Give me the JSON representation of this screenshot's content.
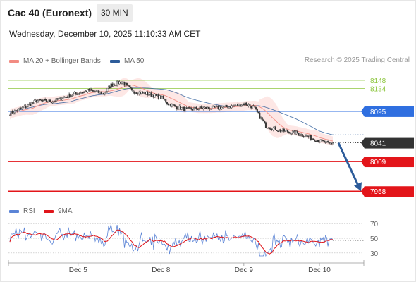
{
  "header": {
    "title": "Cac 40 (Euronext)",
    "timeframe": "30 MIN"
  },
  "datetime": "Wednesday, December 10, 2025 11:10:33 AM CET",
  "legend": {
    "ma20": {
      "label": "MA 20 + Bollinger Bands",
      "color": "#f28b82"
    },
    "ma50": {
      "label": "MA 50",
      "color": "#2d5c9a"
    }
  },
  "credit": "Research © 2025 Trading Central",
  "rsi_legend": {
    "rsi": {
      "label": "RSI",
      "color": "#5b84d6"
    },
    "ma9": {
      "label": "9MA",
      "color": "#e0151a"
    }
  },
  "chart_data": [
    {
      "type": "candlestick",
      "ylim": [
        7945,
        8165
      ],
      "x_ticks": [
        "Dec 5",
        "Dec 8",
        "Dec 9",
        "Dec 10"
      ],
      "current_price": {
        "label": "8041",
        "value": 8041,
        "color": "#333333"
      },
      "levels": [
        {
          "label": "8148",
          "value": 8148,
          "color": "#8dc63f",
          "style": "thin-green"
        },
        {
          "label": "8134",
          "value": 8134,
          "color": "#8dc63f",
          "style": "thin-green"
        },
        {
          "label": "8095",
          "value": 8095,
          "color": "#2f6fe0",
          "style": "blue"
        },
        {
          "label": "8009",
          "value": 8009,
          "color": "#e3151a",
          "style": "red"
        },
        {
          "label": "7958",
          "value": 7958,
          "color": "#e3151a",
          "style": "red"
        }
      ],
      "projection": {
        "from": 8041,
        "to": 7958,
        "color": "#2d5c9a"
      }
    },
    {
      "type": "line",
      "name": "rsi",
      "ylim": [
        25,
        75
      ],
      "y_ticks": [
        "70",
        "50",
        "30"
      ]
    }
  ]
}
